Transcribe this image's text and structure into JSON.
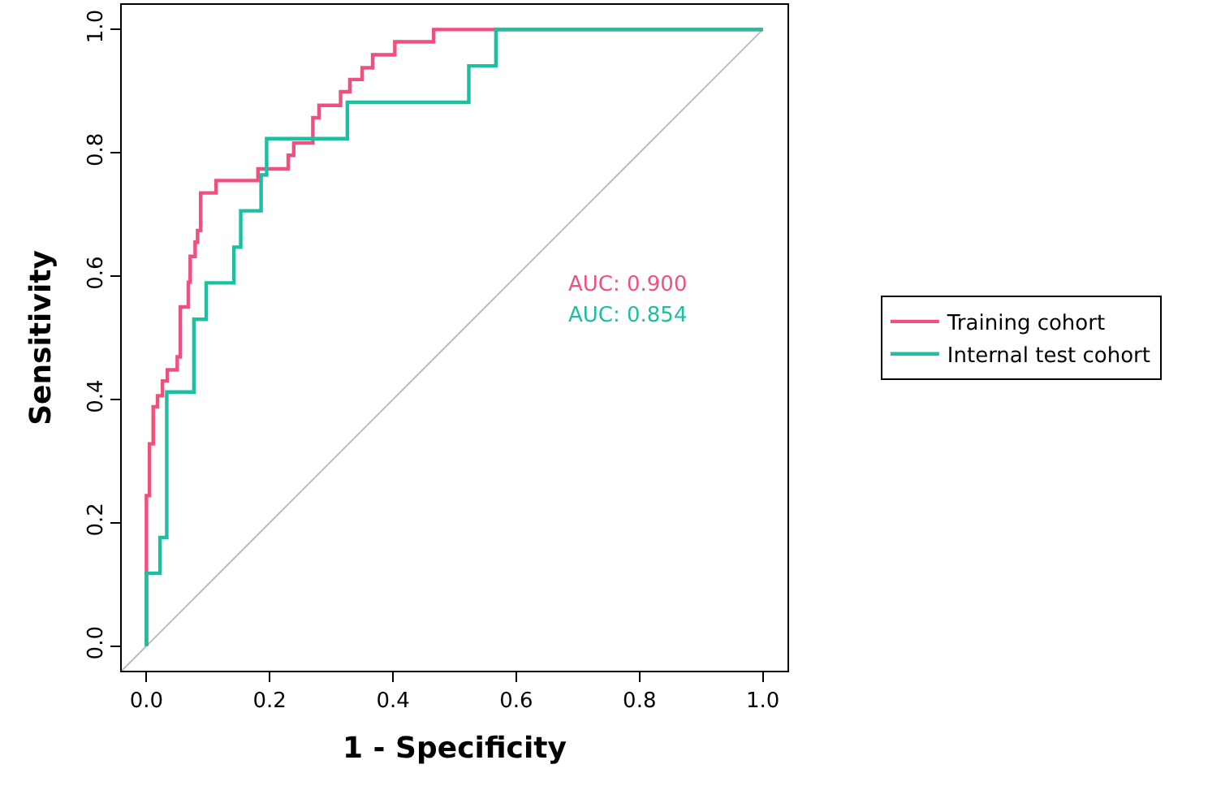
{
  "chart_data": {
    "type": "step",
    "xlabel": "1 - Specificity",
    "ylabel": "Sensitivity",
    "xlim": [
      -0.04,
      1.04
    ],
    "ylim": [
      -0.04,
      1.04
    ],
    "xticks": [
      {
        "value": 0,
        "label": "0.0"
      },
      {
        "value": 0.2,
        "label": "0.2"
      },
      {
        "value": 0.4,
        "label": "0.4"
      },
      {
        "value": 0.6,
        "label": "0.6"
      },
      {
        "value": 0.8,
        "label": "0.8"
      },
      {
        "value": 1,
        "label": "1.0"
      }
    ],
    "yticks": [
      {
        "value": 0,
        "label": "0.0"
      },
      {
        "value": 0.2,
        "label": "0.2"
      },
      {
        "value": 0.4,
        "label": "0.4"
      },
      {
        "value": 0.6,
        "label": "0.6"
      },
      {
        "value": 0.8,
        "label": "0.8"
      },
      {
        "value": 1,
        "label": "1.0"
      }
    ],
    "legend": "right",
    "marker": "none",
    "line_style": "solid",
    "annotations": [
      "AUC: 0.900",
      "AUC: 0.854"
    ],
    "series": [
      {
        "name": "Training cohort",
        "color": "#f0507c",
        "x": [
          0,
          0.005,
          0.011,
          0.018,
          0.026,
          0.034,
          0.05,
          0.055,
          0.068,
          0.071,
          0.079,
          0.083,
          0.088,
          0.113,
          0.181,
          0.23,
          0.239,
          0.27,
          0.28,
          0.315,
          0.33,
          0.35,
          0.367,
          0.403,
          0.466,
          1.0
        ],
        "values": [
          0,
          0.244,
          0.328,
          0.388,
          0.406,
          0.43,
          0.448,
          0.469,
          0.55,
          0.59,
          0.632,
          0.655,
          0.674,
          0.735,
          0.755,
          0.774,
          0.796,
          0.816,
          0.857,
          0.877,
          0.899,
          0.919,
          0.938,
          0.959,
          0.98,
          1.0
        ]
      },
      {
        "name": "Internal test cohort",
        "color": "#1cbf9f",
        "x": [
          0,
          0.022,
          0.033,
          0.077,
          0.097,
          0.142,
          0.153,
          0.186,
          0.195,
          0.326,
          0.523,
          0.567,
          1.0
        ],
        "values": [
          0,
          0.118,
          0.176,
          0.412,
          0.53,
          0.589,
          0.647,
          0.706,
          0.764,
          0.823,
          0.882,
          0.941,
          1.0
        ]
      },
      {
        "type": "line",
        "color": "#bebebe",
        "x": [
          -0.04,
          1.0
        ],
        "values": [
          -0.04,
          1.0
        ]
      }
    ]
  }
}
